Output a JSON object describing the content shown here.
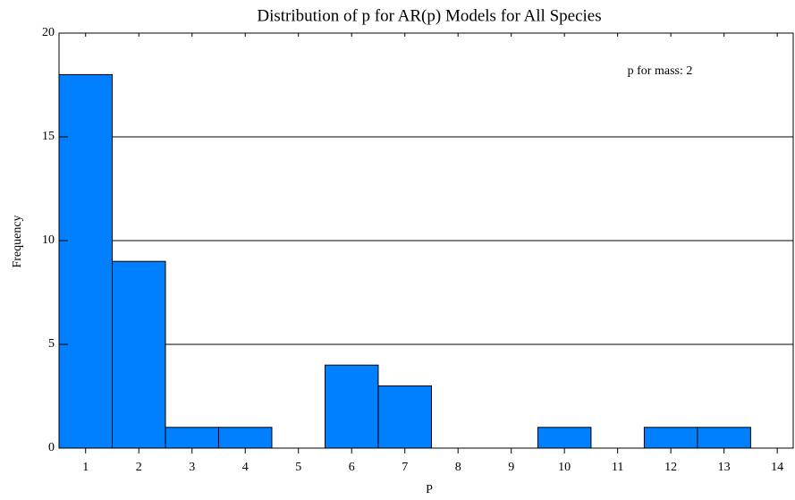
{
  "chart_data": {
    "type": "bar",
    "title": "Distribution of p for AR(p) Models for All Species",
    "x_label": "P",
    "y_label": "Frequency",
    "annotation": "p for mass: 2",
    "x": [
      1,
      2,
      3,
      4,
      5,
      6,
      7,
      8,
      9,
      10,
      11,
      12,
      13
    ],
    "values": [
      18,
      9,
      1,
      1,
      0,
      4,
      3,
      0,
      0,
      1,
      0,
      1,
      1
    ],
    "color": "#0080ff",
    "xlim": [
      0.5,
      14.3
    ],
    "xticks": [
      1,
      2,
      3,
      4,
      5,
      6,
      7,
      8,
      9,
      10,
      11,
      12,
      13,
      14
    ],
    "ylim": [
      0,
      20
    ],
    "yticks": [
      0,
      5,
      10,
      15,
      20
    ],
    "grid": true
  }
}
